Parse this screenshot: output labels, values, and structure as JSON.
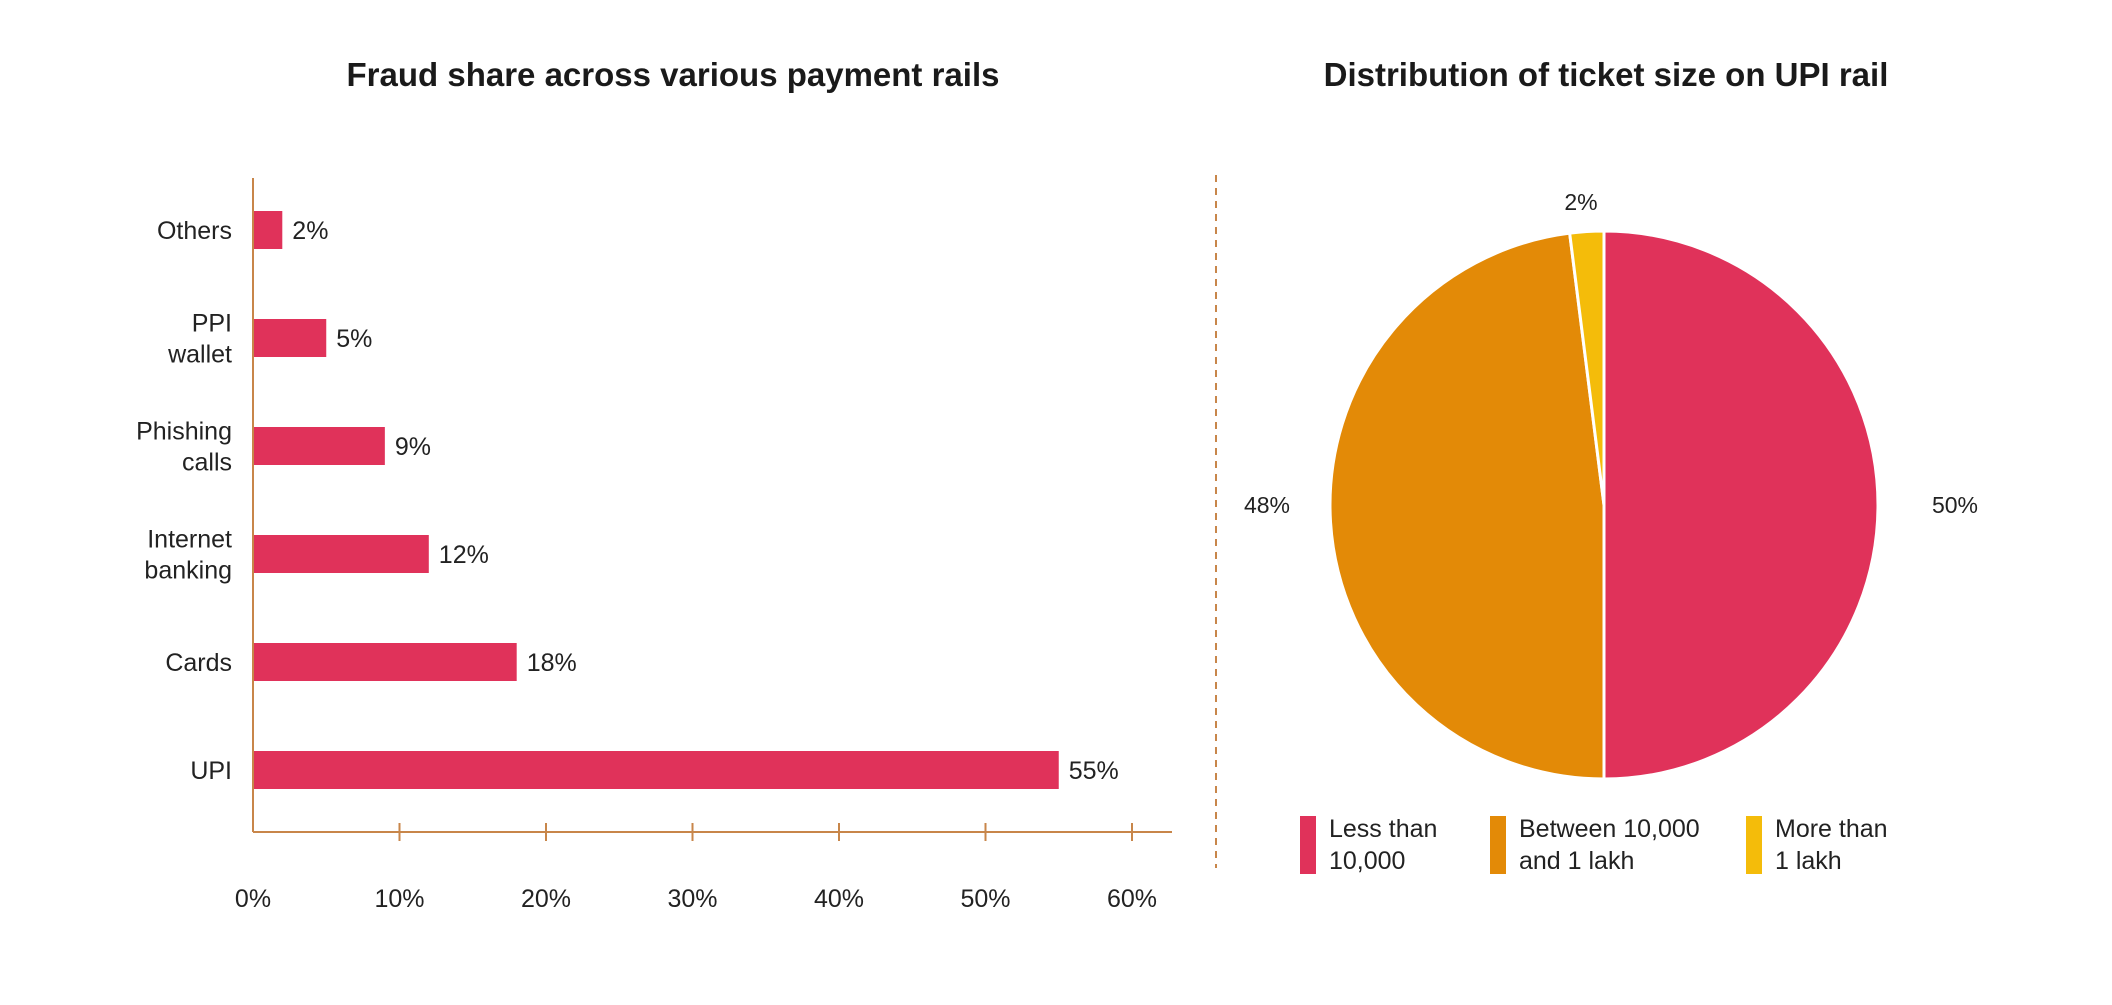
{
  "chart_data": [
    {
      "type": "bar",
      "orientation": "horizontal",
      "title": "Fraud share across various payment rails",
      "categories": [
        [
          "Others"
        ],
        [
          "PPI",
          "wallet"
        ],
        [
          "Phishing",
          "calls"
        ],
        [
          "Internet",
          "banking"
        ],
        [
          "Cards"
        ],
        [
          "UPI"
        ]
      ],
      "values": [
        2,
        5,
        9,
        12,
        18,
        55
      ],
      "value_labels": [
        "2%",
        "5%",
        "9%",
        "12%",
        "18%",
        "55%"
      ],
      "xlim": [
        0,
        60
      ],
      "xticks": [
        0,
        10,
        20,
        30,
        40,
        50,
        60
      ],
      "xtick_labels": [
        "0%",
        "10%",
        "20%",
        "30%",
        "40%",
        "50%",
        "60%"
      ],
      "xlabel": "",
      "ylabel": "",
      "grid": false,
      "colors": {
        "bar": "#e0325a",
        "axis": "#c8864a"
      }
    },
    {
      "type": "pie",
      "title": "Distribution of ticket size on UPI rail",
      "slices": [
        {
          "label": [
            "Less than",
            "10,000"
          ],
          "value": 50,
          "value_label": "50%",
          "color": "#e0325a"
        },
        {
          "label": [
            "Between 10,000",
            "and 1 lakh"
          ],
          "value": 48,
          "value_label": "48%",
          "color": "#e38a07"
        },
        {
          "label": [
            "More than",
            "1 lakh"
          ],
          "value": 2,
          "value_label": "2%",
          "color": "#f4bc0a"
        }
      ],
      "start_angle": "top",
      "direction": "clockwise",
      "legend_position": "bottom",
      "colors": {
        "separator": "#c8864a"
      }
    }
  ]
}
